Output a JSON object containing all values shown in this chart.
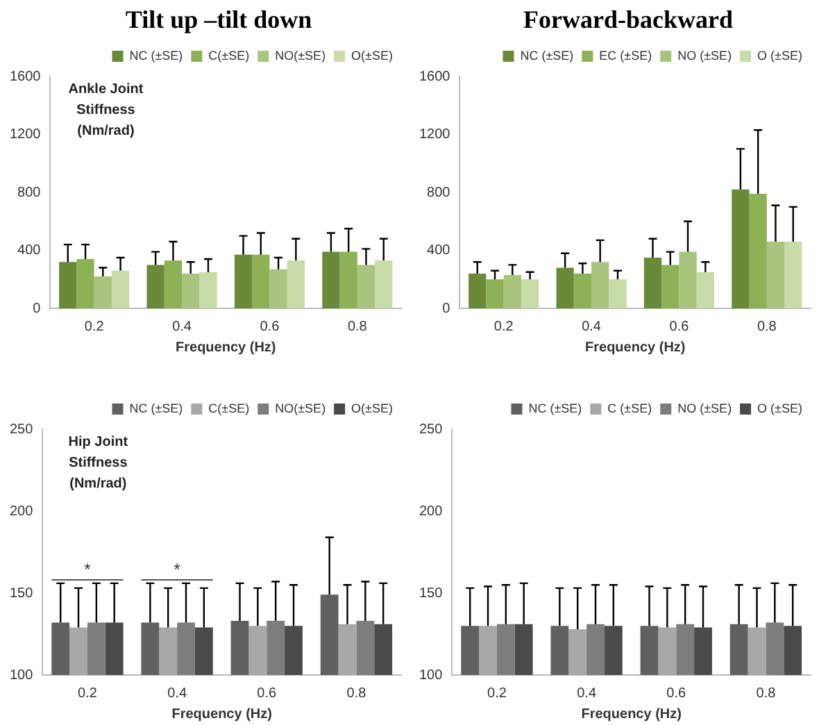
{
  "chart_data": [
    {
      "type": "bar",
      "title": "Tilt up –tilt down",
      "ylabel": "Ankle Joint Stiffness (Nm/rad)",
      "xlabel": "Frequency (Hz)",
      "categories": [
        "0.2",
        "0.4",
        "0.6",
        "0.8"
      ],
      "ylim": [
        0,
        1600
      ],
      "yticks": [
        0,
        400,
        800,
        1200,
        1600
      ],
      "grid": false,
      "legend": "top right",
      "series": [
        {
          "name": "NC (±SE)",
          "color": "#6a8a3a",
          "values": [
            320,
            300,
            370,
            390
          ],
          "errors": [
            [
              320,
              440
            ],
            [
              300,
              390
            ],
            [
              370,
              500
            ],
            [
              390,
              520
            ]
          ]
        },
        {
          "name": "C(±SE)",
          "color": "#8db255",
          "values": [
            340,
            330,
            370,
            390
          ],
          "errors": [
            [
              340,
              440
            ],
            [
              330,
              460
            ],
            [
              370,
              520
            ],
            [
              390,
              550
            ]
          ]
        },
        {
          "name": "NO(±SE)",
          "color": "#a9c47d",
          "values": [
            220,
            240,
            270,
            300
          ],
          "errors": [
            [
              220,
              280
            ],
            [
              240,
              320
            ],
            [
              270,
              350
            ],
            [
              300,
              410
            ]
          ]
        },
        {
          "name": "O(±SE)",
          "color": "#c8dba8",
          "values": [
            260,
            250,
            330,
            330
          ],
          "errors": [
            [
              260,
              350
            ],
            [
              250,
              340
            ],
            [
              330,
              480
            ],
            [
              330,
              480
            ]
          ]
        }
      ]
    },
    {
      "type": "bar",
      "title": "Forward-backward",
      "xlabel": "Frequency (Hz)",
      "categories": [
        "0.2",
        "0.4",
        "0.6",
        "0.8"
      ],
      "ylim": [
        0,
        1600
      ],
      "yticks": [
        0,
        400,
        800,
        1200,
        1600
      ],
      "grid": false,
      "legend": "top right",
      "series": [
        {
          "name": "NC (±SE)",
          "color": "#6a8a3a",
          "values": [
            240,
            280,
            350,
            820
          ],
          "errors": [
            [
              240,
              320
            ],
            [
              280,
              380
            ],
            [
              350,
              480
            ],
            [
              820,
              1100
            ]
          ]
        },
        {
          "name": "EC (±SE)",
          "color": "#8db255",
          "values": [
            200,
            240,
            300,
            790
          ],
          "errors": [
            [
              200,
              260
            ],
            [
              240,
              310
            ],
            [
              300,
              390
            ],
            [
              790,
              1230
            ]
          ]
        },
        {
          "name": "NO (±SE)",
          "color": "#a9c47d",
          "values": [
            230,
            320,
            390,
            460
          ],
          "errors": [
            [
              230,
              300
            ],
            [
              320,
              470
            ],
            [
              390,
              600
            ],
            [
              460,
              710
            ]
          ]
        },
        {
          "name": "O (±SE)",
          "color": "#c8dba8",
          "values": [
            200,
            200,
            250,
            460
          ],
          "errors": [
            [
              200,
              250
            ],
            [
              200,
              260
            ],
            [
              250,
              320
            ],
            [
              460,
              700
            ]
          ]
        }
      ]
    },
    {
      "type": "bar",
      "ylabel": "Hip Joint Stiffness (Nm/rad)",
      "xlabel": "Frequency (Hz)",
      "categories": [
        "0.2",
        "0.4",
        "0.6",
        "0.8"
      ],
      "ylim": [
        100,
        250
      ],
      "yticks": [
        100,
        150,
        200,
        250
      ],
      "grid": false,
      "legend": "top right",
      "annotations": [
        "*",
        "*"
      ],
      "series": [
        {
          "name": "NC (±SE)",
          "color": "#606060",
          "values": [
            132,
            132,
            133,
            149
          ],
          "errors": [
            [
              132,
              156
            ],
            [
              132,
              156
            ],
            [
              133,
              156
            ],
            [
              149,
              184
            ]
          ]
        },
        {
          "name": "C(±SE)",
          "color": "#a8a8a8",
          "values": [
            129,
            129,
            130,
            131
          ],
          "errors": [
            [
              129,
              153
            ],
            [
              129,
              153
            ],
            [
              130,
              153
            ],
            [
              131,
              155
            ]
          ]
        },
        {
          "name": "NO(±SE)",
          "color": "#7d7d7d",
          "values": [
            132,
            132,
            133,
            133
          ],
          "errors": [
            [
              132,
              156
            ],
            [
              132,
              156
            ],
            [
              133,
              157
            ],
            [
              133,
              157
            ]
          ]
        },
        {
          "name": "O(±SE)",
          "color": "#4a4a4a",
          "values": [
            132,
            129,
            130,
            131
          ],
          "errors": [
            [
              132,
              156
            ],
            [
              129,
              153
            ],
            [
              130,
              155
            ],
            [
              131,
              156
            ]
          ]
        }
      ]
    },
    {
      "type": "bar",
      "xlabel": "Frequency (Hz)",
      "categories": [
        "0.2",
        "0.4",
        "0.6",
        "0.8"
      ],
      "ylim": [
        100,
        250
      ],
      "yticks": [
        100,
        150,
        200,
        250
      ],
      "grid": false,
      "legend": "top right",
      "series": [
        {
          "name": "NC (±SE)",
          "color": "#606060",
          "values": [
            130,
            130,
            130,
            131
          ],
          "errors": [
            [
              130,
              153
            ],
            [
              130,
              153
            ],
            [
              130,
              154
            ],
            [
              131,
              155
            ]
          ]
        },
        {
          "name": "C (±SE)",
          "color": "#a8a8a8",
          "values": [
            130,
            128,
            129,
            129
          ],
          "errors": [
            [
              130,
              154
            ],
            [
              128,
              153
            ],
            [
              129,
              153
            ],
            [
              129,
              153
            ]
          ]
        },
        {
          "name": "NO (±SE)",
          "color": "#7d7d7d",
          "values": [
            131,
            131,
            131,
            132
          ],
          "errors": [
            [
              131,
              155
            ],
            [
              131,
              155
            ],
            [
              131,
              155
            ],
            [
              132,
              156
            ]
          ]
        },
        {
          "name": "O (±SE)",
          "color": "#4a4a4a",
          "values": [
            131,
            130,
            129,
            130
          ],
          "errors": [
            [
              131,
              156
            ],
            [
              130,
              155
            ],
            [
              129,
              154
            ],
            [
              130,
              155
            ]
          ]
        }
      ]
    }
  ]
}
